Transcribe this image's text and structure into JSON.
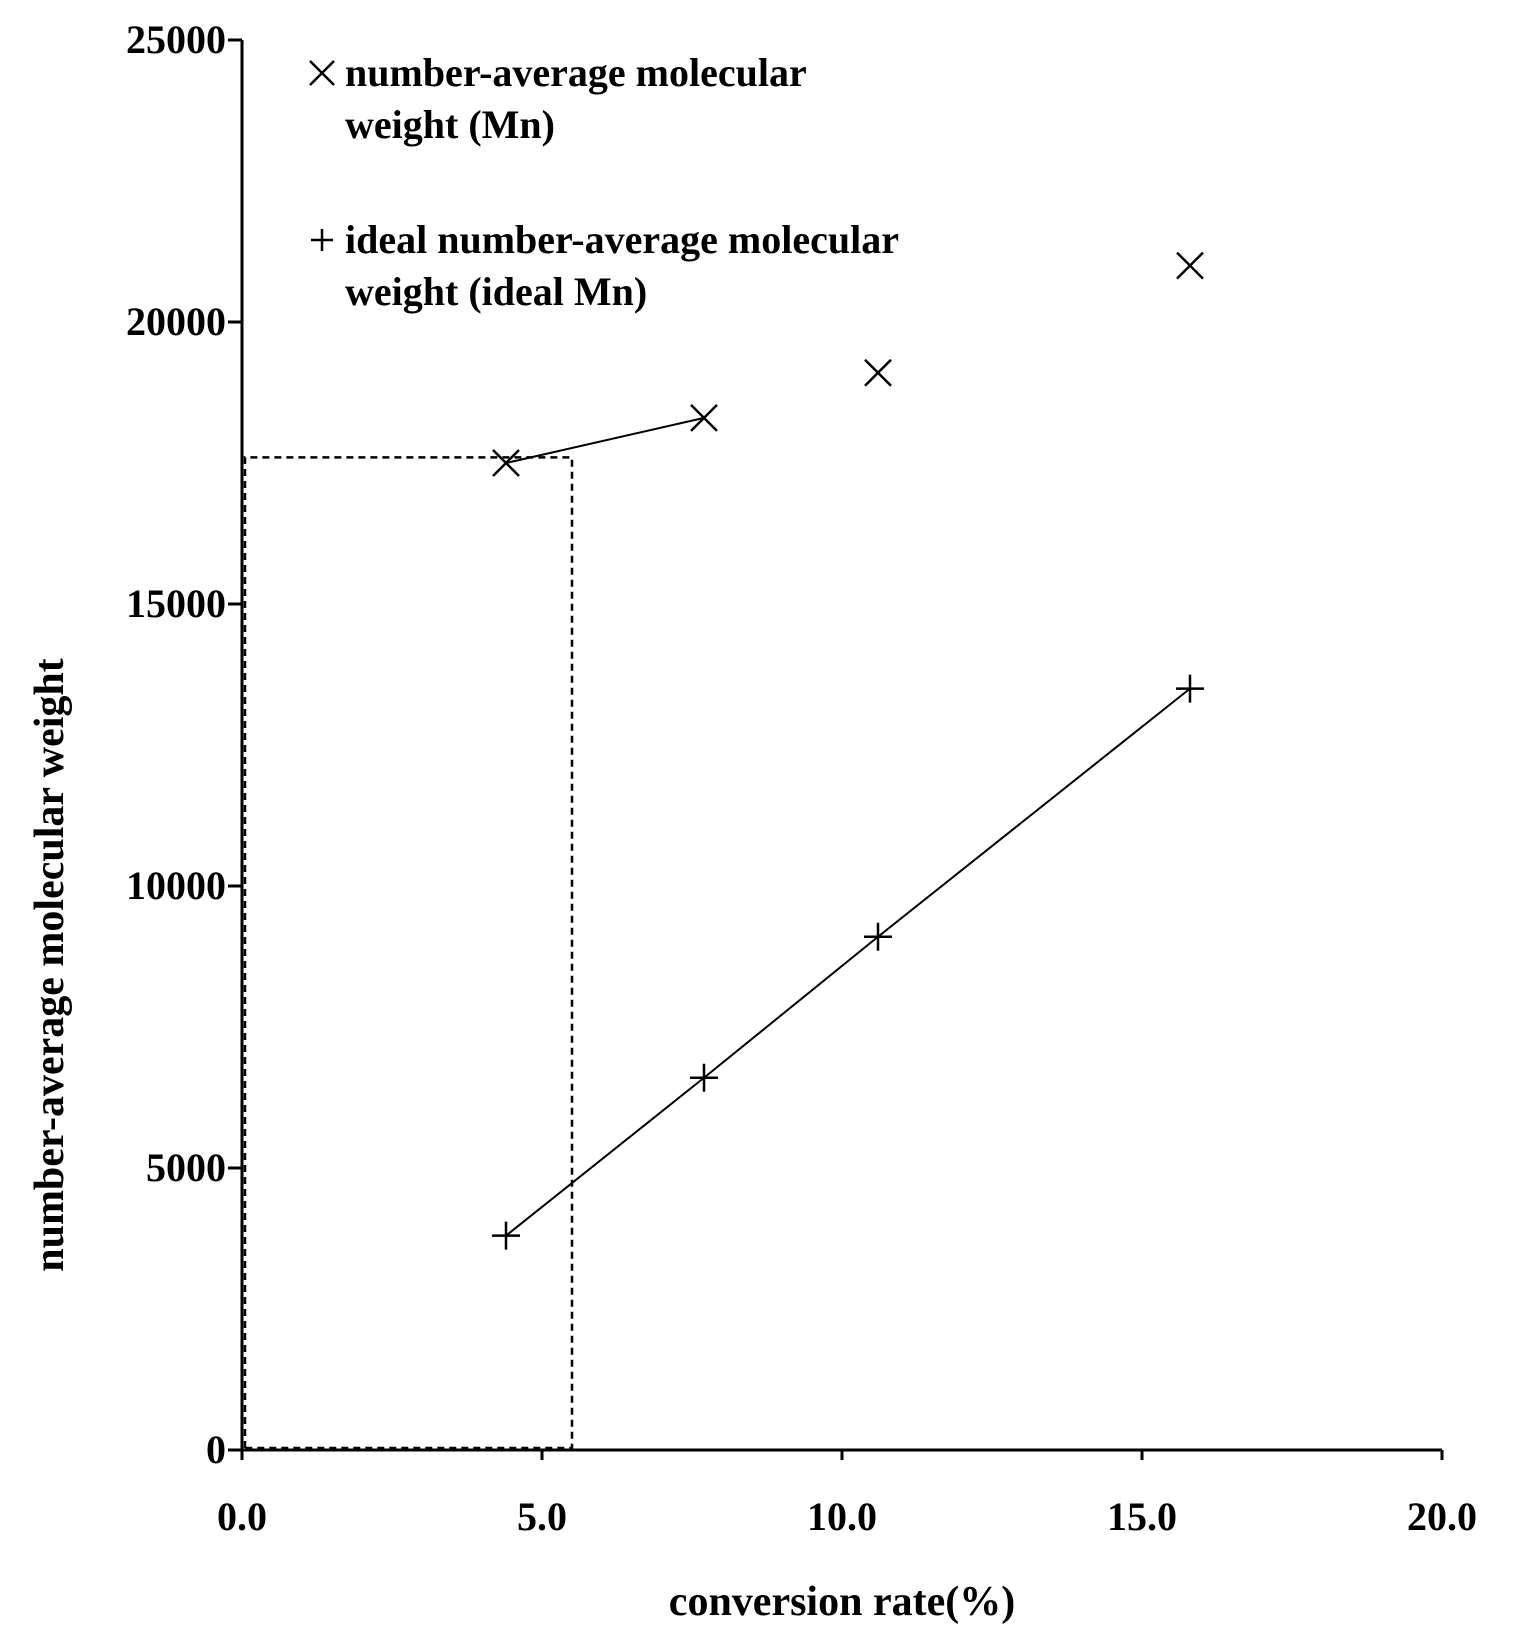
{
  "chart_data": {
    "type": "scatter",
    "title": "",
    "xlabel": "conversion rate(%)",
    "ylabel": "number-average molecular weight",
    "xlim": [
      0,
      20
    ],
    "ylim": [
      0,
      25000
    ],
    "x_ticks": [
      "0.0",
      "5.0",
      "10.0",
      "15.0",
      "20.0"
    ],
    "y_ticks": [
      "0",
      "5000",
      "10000",
      "15000",
      "20000",
      "25000"
    ],
    "grid": false,
    "legend_position": "top-left",
    "series": [
      {
        "name_lines": [
          "number-average molecular",
          "weight (Mn)"
        ],
        "marker": "x",
        "points": [
          {
            "x": 4.4,
            "y": 17500
          },
          {
            "x": 7.7,
            "y": 18300
          },
          {
            "x": 10.6,
            "y": 19100
          },
          {
            "x": 15.8,
            "y": 21000
          }
        ],
        "line_between": [
          0,
          1
        ]
      },
      {
        "name_lines": [
          "ideal number-average molecular",
          "weight (ideal Mn)"
        ],
        "marker": "+",
        "points": [
          {
            "x": 4.4,
            "y": 3800
          },
          {
            "x": 7.7,
            "y": 6600
          },
          {
            "x": 10.6,
            "y": 9100
          },
          {
            "x": 15.8,
            "y": 13500
          }
        ],
        "line_between": [
          0,
          3
        ]
      }
    ],
    "reference_box": {
      "x": [
        0,
        5.5
      ],
      "y": [
        0,
        17600
      ],
      "style": "dashed"
    }
  }
}
